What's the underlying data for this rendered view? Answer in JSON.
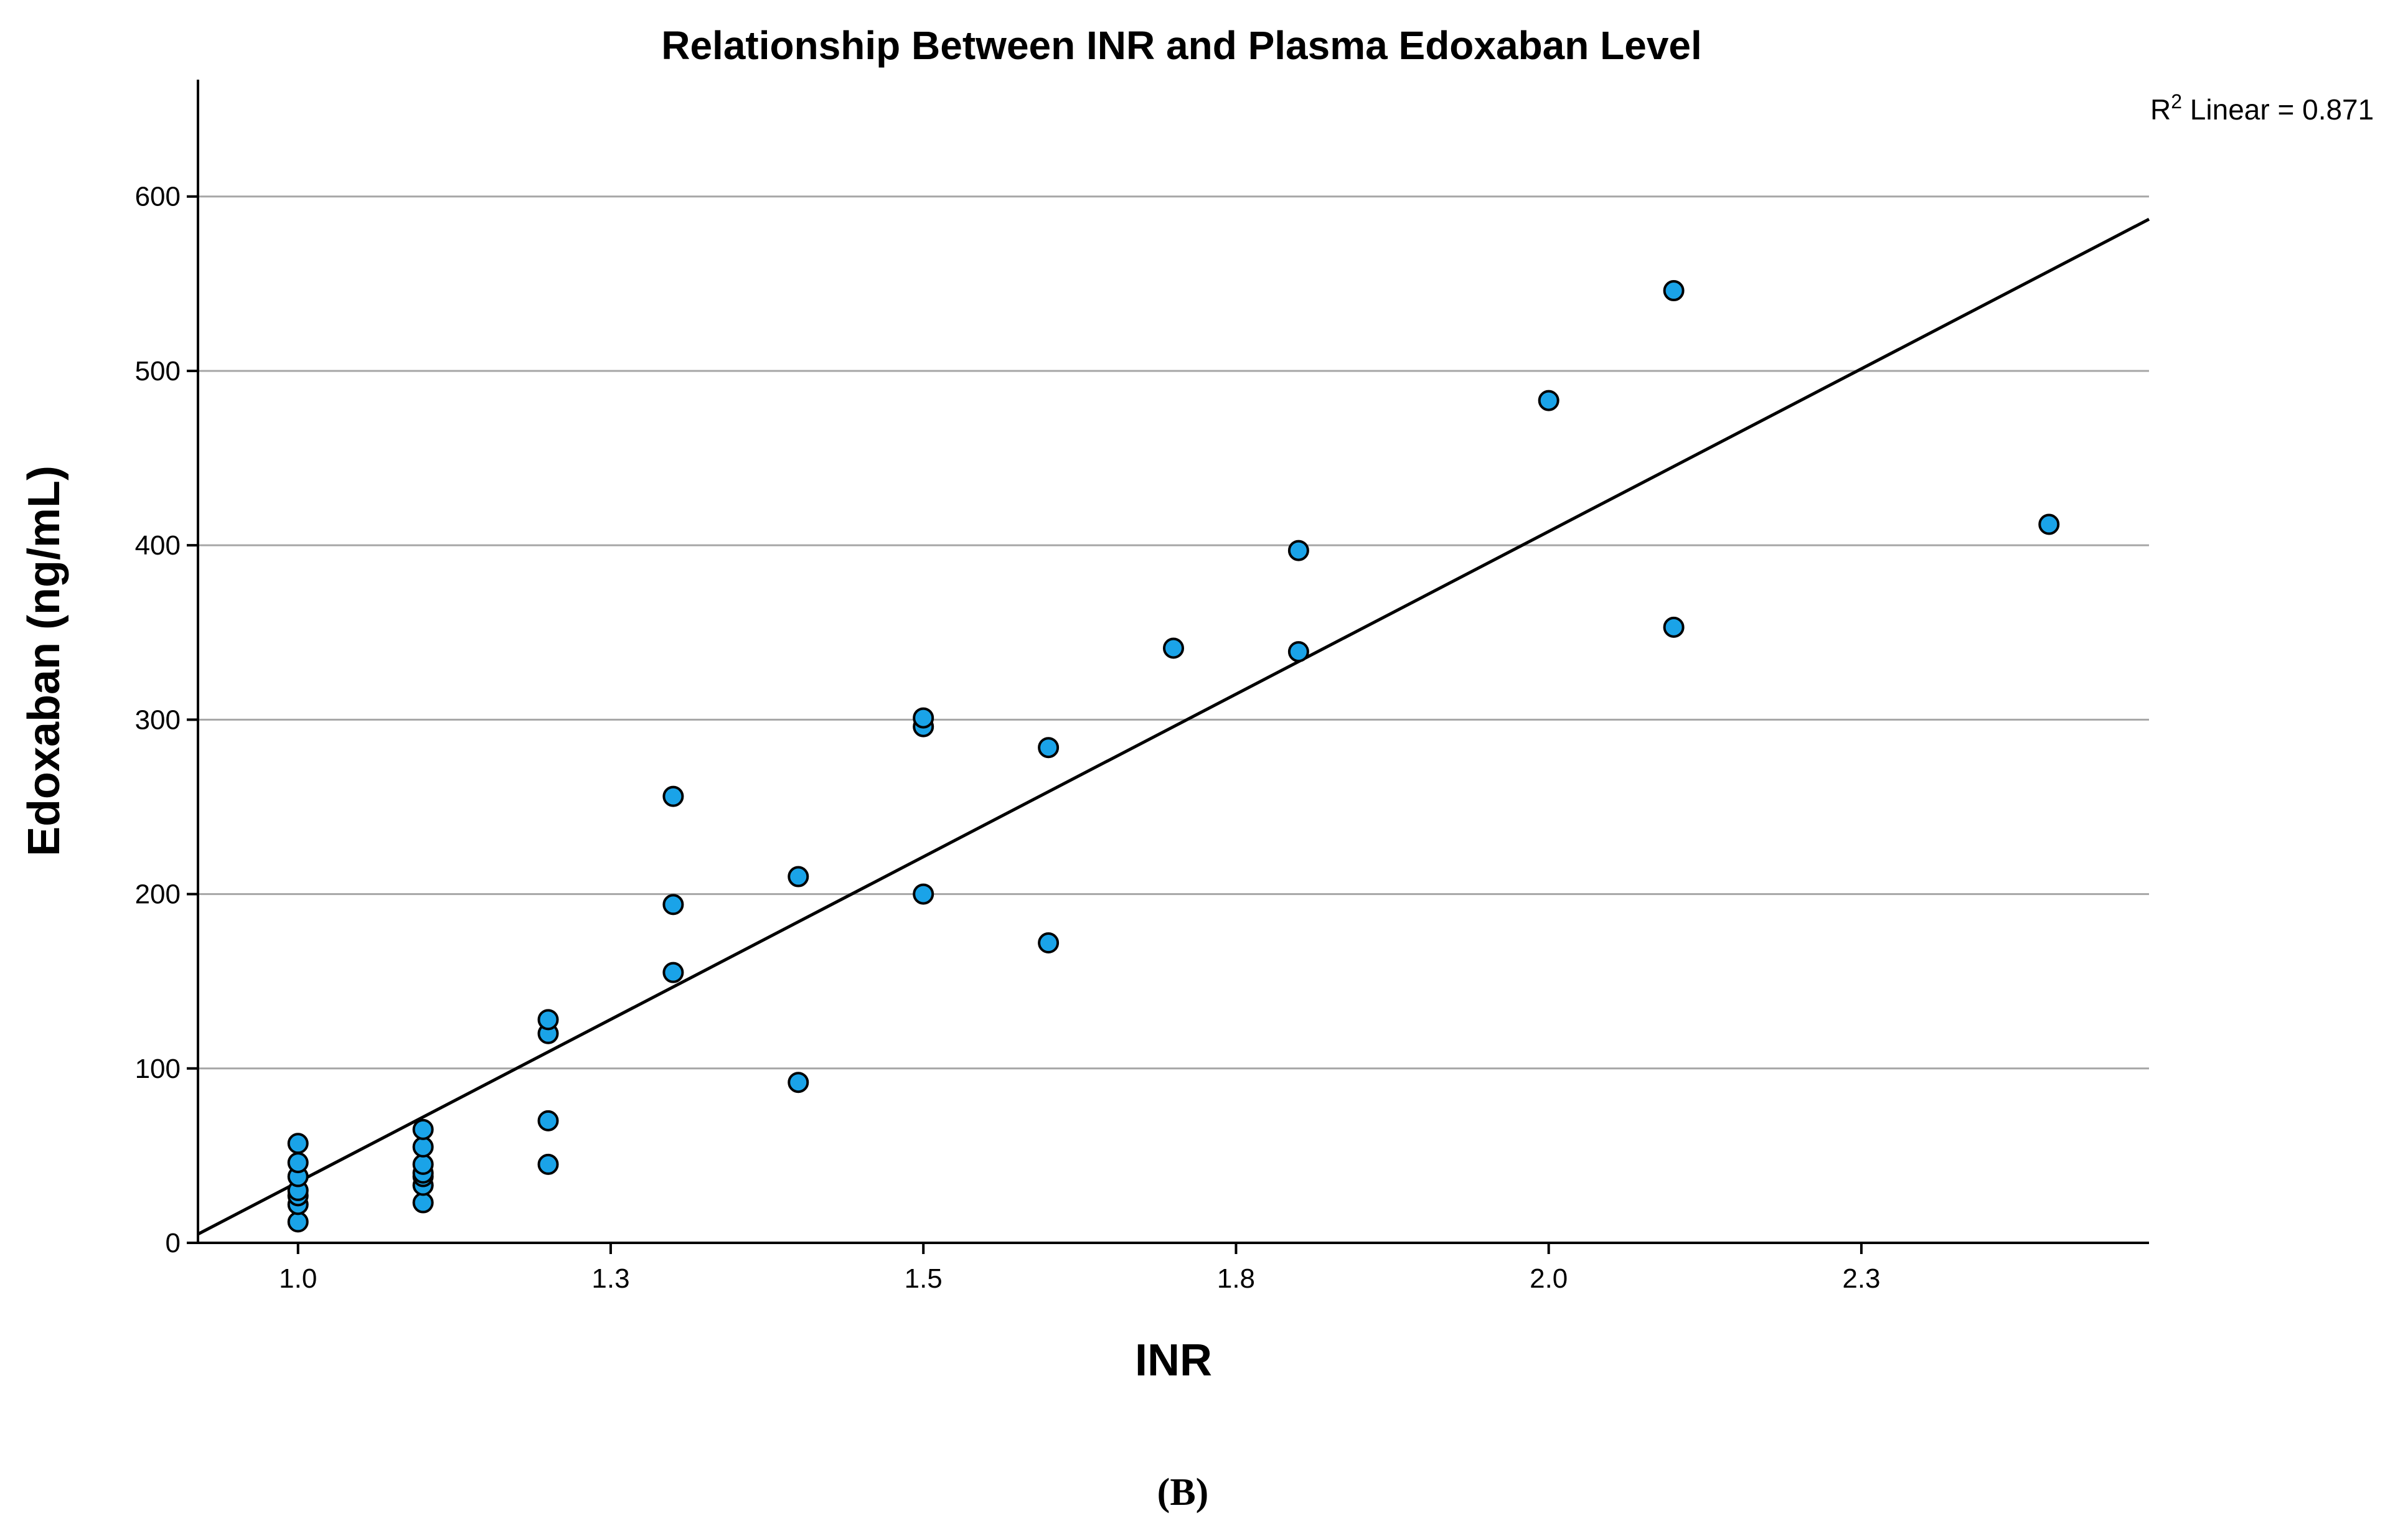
{
  "chart_data": {
    "type": "scatter",
    "title": "Relationship Between INR and Plasma Edoxaban Level",
    "xlabel": "INR",
    "ylabel": "Edoxaban (ng/mL)",
    "xlim": [
      0.92,
      2.48
    ],
    "ylim": [
      0,
      667
    ],
    "x_ticks": [
      {
        "value": 1.0,
        "label": "1.0"
      },
      {
        "value": 1.25,
        "label": "1.3"
      },
      {
        "value": 1.5,
        "label": "1.5"
      },
      {
        "value": 1.75,
        "label": "1.8"
      },
      {
        "value": 2.0,
        "label": "2.0"
      },
      {
        "value": 2.25,
        "label": "2.3"
      }
    ],
    "y_ticks": [
      0,
      100,
      200,
      300,
      400,
      500,
      600
    ],
    "grid": true,
    "points": [
      {
        "x": 1.0,
        "y": 12
      },
      {
        "x": 1.0,
        "y": 22
      },
      {
        "x": 1.0,
        "y": 27
      },
      {
        "x": 1.0,
        "y": 30
      },
      {
        "x": 1.0,
        "y": 38
      },
      {
        "x": 1.0,
        "y": 46
      },
      {
        "x": 1.0,
        "y": 57
      },
      {
        "x": 1.1,
        "y": 23
      },
      {
        "x": 1.1,
        "y": 33
      },
      {
        "x": 1.1,
        "y": 38
      },
      {
        "x": 1.1,
        "y": 40
      },
      {
        "x": 1.1,
        "y": 45
      },
      {
        "x": 1.1,
        "y": 55
      },
      {
        "x": 1.1,
        "y": 65
      },
      {
        "x": 1.2,
        "y": 45
      },
      {
        "x": 1.2,
        "y": 70
      },
      {
        "x": 1.2,
        "y": 120
      },
      {
        "x": 1.2,
        "y": 128
      },
      {
        "x": 1.3,
        "y": 155
      },
      {
        "x": 1.3,
        "y": 194
      },
      {
        "x": 1.3,
        "y": 256
      },
      {
        "x": 1.4,
        "y": 92
      },
      {
        "x": 1.4,
        "y": 210
      },
      {
        "x": 1.5,
        "y": 200
      },
      {
        "x": 1.5,
        "y": 296
      },
      {
        "x": 1.5,
        "y": 301
      },
      {
        "x": 1.6,
        "y": 172
      },
      {
        "x": 1.6,
        "y": 284
      },
      {
        "x": 1.7,
        "y": 341
      },
      {
        "x": 1.8,
        "y": 339
      },
      {
        "x": 1.8,
        "y": 397
      },
      {
        "x": 2.0,
        "y": 483
      },
      {
        "x": 2.1,
        "y": 353
      },
      {
        "x": 2.1,
        "y": 546
      },
      {
        "x": 2.4,
        "y": 412
      }
    ],
    "fit_line": {
      "type": "linear",
      "from": {
        "x": 0.92,
        "y": 5
      },
      "to": {
        "x": 2.48,
        "y": 587
      }
    },
    "annotation": {
      "prefix": "R",
      "superscript": "2",
      "text": " Linear = 0.871"
    }
  },
  "caption": "(B)"
}
